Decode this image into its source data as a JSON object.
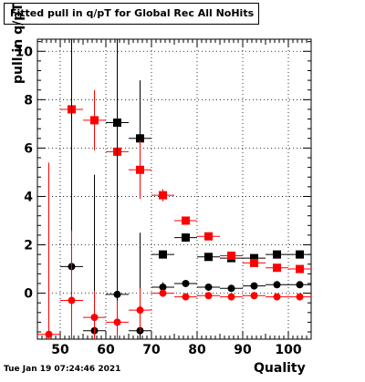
{
  "chart_data": {
    "type": "scatter",
    "title": "Fitted pull in q/pT for Global Rec All NoHits",
    "xlabel": "Quality",
    "ylabel": "pull in q/pT",
    "timestamp": "Tue Jan 19 07:24:46 2021",
    "xlim": [
      45,
      105
    ],
    "ylim": [
      -1.9,
      10.5
    ],
    "x_ticks": [
      50,
      60,
      70,
      80,
      90,
      100
    ],
    "y_ticks": [
      0,
      2,
      4,
      6,
      8,
      10
    ],
    "grid": true,
    "series": [
      {
        "color": "#000000",
        "marker": "square",
        "points": [
          {
            "x": 62.5,
            "y": 7.05,
            "xerr": 2.5,
            "ylo": 3.7,
            "yhi": 10.5
          },
          {
            "x": 67.5,
            "y": 6.4,
            "xerr": 2.5,
            "ylo": 4.0,
            "yhi": 8.8
          },
          {
            "x": 72.5,
            "y": 1.6,
            "xerr": 2.5,
            "ylo": 1.45,
            "yhi": 1.75
          },
          {
            "x": 77.5,
            "y": 2.3,
            "xerr": 2.5,
            "ylo": 2.15,
            "yhi": 2.45
          },
          {
            "x": 82.5,
            "y": 1.5,
            "xerr": 2.5,
            "ylo": 1.4,
            "yhi": 1.6
          },
          {
            "x": 87.5,
            "y": 1.45,
            "xerr": 2.5,
            "ylo": 1.35,
            "yhi": 1.55
          },
          {
            "x": 92.5,
            "y": 1.45,
            "xerr": 2.5,
            "ylo": 1.35,
            "yhi": 1.55
          },
          {
            "x": 97.5,
            "y": 1.6,
            "xerr": 2.5,
            "ylo": 1.5,
            "yhi": 1.7
          },
          {
            "x": 102.5,
            "y": 1.6,
            "xerr": 2.5,
            "ylo": 1.5,
            "yhi": 1.7
          }
        ]
      },
      {
        "color": "#ff0000",
        "marker": "square",
        "points": [
          {
            "x": 52.5,
            "y": 7.6,
            "xerr": 2.5,
            "ylo": 4.0,
            "yhi": 10.5
          },
          {
            "x": 57.5,
            "y": 7.15,
            "xerr": 2.5,
            "ylo": 5.9,
            "yhi": 8.4
          },
          {
            "x": 62.5,
            "y": 5.85,
            "xerr": 2.5,
            "ylo": 4.6,
            "yhi": 7.1
          },
          {
            "x": 67.5,
            "y": 5.1,
            "xerr": 2.5,
            "ylo": 3.9,
            "yhi": 6.3
          },
          {
            "x": 72.5,
            "y": 4.05,
            "xerr": 2.5,
            "ylo": 3.8,
            "yhi": 4.3
          },
          {
            "x": 77.5,
            "y": 3.0,
            "xerr": 2.5,
            "ylo": 2.85,
            "yhi": 3.15
          },
          {
            "x": 82.5,
            "y": 2.35,
            "xerr": 2.5,
            "ylo": 2.25,
            "yhi": 2.45
          },
          {
            "x": 87.5,
            "y": 1.55,
            "xerr": 2.5,
            "ylo": 1.45,
            "yhi": 1.65
          },
          {
            "x": 92.5,
            "y": 1.25,
            "xerr": 2.5,
            "ylo": 1.15,
            "yhi": 1.35
          },
          {
            "x": 97.5,
            "y": 1.05,
            "xerr": 2.5,
            "ylo": 0.95,
            "yhi": 1.15
          },
          {
            "x": 102.5,
            "y": 1.0,
            "xerr": 2.5,
            "ylo": 0.9,
            "yhi": 1.1
          }
        ]
      },
      {
        "color": "#000000",
        "marker": "circle",
        "points": [
          {
            "x": 52.5,
            "y": 1.1,
            "xerr": 2.5,
            "ylo": -1.9,
            "yhi": 10.5
          },
          {
            "x": 57.5,
            "y": -1.55,
            "xerr": 2.5,
            "ylo": -1.9,
            "yhi": 4.9
          },
          {
            "x": 62.5,
            "y": -0.05,
            "xerr": 2.5,
            "ylo": -1.9,
            "yhi": 10.5
          },
          {
            "x": 67.5,
            "y": -1.55,
            "xerr": 2.5,
            "ylo": -1.9,
            "yhi": 2.5
          },
          {
            "x": 72.5,
            "y": 0.25,
            "xerr": 2.5,
            "ylo": 0.05,
            "yhi": 0.45
          },
          {
            "x": 77.5,
            "y": 0.4,
            "xerr": 2.5,
            "ylo": 0.25,
            "yhi": 0.55
          },
          {
            "x": 82.5,
            "y": 0.25,
            "xerr": 2.5,
            "ylo": 0.15,
            "yhi": 0.35
          },
          {
            "x": 87.5,
            "y": 0.2,
            "xerr": 2.5,
            "ylo": 0.1,
            "yhi": 0.3
          },
          {
            "x": 92.5,
            "y": 0.3,
            "xerr": 2.5,
            "ylo": 0.2,
            "yhi": 0.4
          },
          {
            "x": 97.5,
            "y": 0.35,
            "xerr": 2.5,
            "ylo": 0.25,
            "yhi": 0.45
          },
          {
            "x": 102.5,
            "y": 0.35,
            "xerr": 2.5,
            "ylo": 0.25,
            "yhi": 0.45
          }
        ]
      },
      {
        "color": "#ff0000",
        "marker": "circle",
        "points": [
          {
            "x": 47.5,
            "y": -1.7,
            "xerr": 2.5,
            "ylo": -1.9,
            "yhi": 5.4
          },
          {
            "x": 52.5,
            "y": -0.3,
            "xerr": 2.5,
            "ylo": -1.9,
            "yhi": 2.6
          },
          {
            "x": 57.5,
            "y": -1.0,
            "xerr": 2.5,
            "ylo": -1.9,
            "yhi": 0.1
          },
          {
            "x": 62.5,
            "y": -1.2,
            "xerr": 2.5,
            "ylo": -1.9,
            "yhi": -0.3
          },
          {
            "x": 67.5,
            "y": -0.7,
            "xerr": 2.5,
            "ylo": -1.6,
            "yhi": 0.2
          },
          {
            "x": 72.5,
            "y": 0.0,
            "xerr": 2.5,
            "ylo": -0.15,
            "yhi": 0.15
          },
          {
            "x": 77.5,
            "y": -0.15,
            "xerr": 2.5,
            "ylo": -0.25,
            "yhi": -0.05
          },
          {
            "x": 82.5,
            "y": -0.1,
            "xerr": 2.5,
            "ylo": -0.2,
            "yhi": 0.0
          },
          {
            "x": 87.5,
            "y": -0.15,
            "xerr": 2.5,
            "ylo": -0.25,
            "yhi": -0.05
          },
          {
            "x": 92.5,
            "y": -0.1,
            "xerr": 2.5,
            "ylo": -0.2,
            "yhi": 0.0
          },
          {
            "x": 97.5,
            "y": -0.15,
            "xerr": 2.5,
            "ylo": -0.25,
            "yhi": -0.05
          },
          {
            "x": 102.5,
            "y": -0.15,
            "xerr": 2.5,
            "ylo": -0.25,
            "yhi": -0.05
          }
        ]
      }
    ]
  }
}
